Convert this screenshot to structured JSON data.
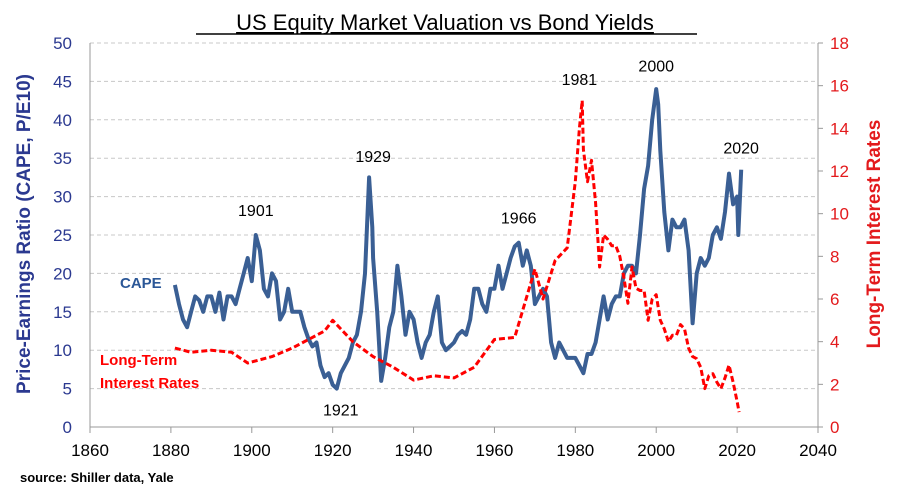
{
  "chart_data": {
    "type": "line",
    "title": "US Equity Market Valuation vs Bond Yields",
    "source": "source: Shiller data, Yale",
    "xlim": [
      1860,
      2040
    ],
    "xticks": [
      1860,
      1880,
      1900,
      1920,
      1940,
      1960,
      1980,
      2000,
      2020,
      2040
    ],
    "y_left": {
      "label": "Price-Earnings Ratio (CAPE, P/E10)",
      "lim": [
        0,
        50
      ],
      "ticks": [
        0,
        5,
        10,
        15,
        20,
        25,
        30,
        35,
        40,
        45,
        50
      ],
      "color": "#2b3990"
    },
    "y_right": {
      "label": "Long-Term Interest Rates",
      "lim": [
        0,
        18
      ],
      "ticks": [
        0,
        2,
        4,
        6,
        8,
        10,
        12,
        14,
        16,
        18
      ],
      "color": "#e31a1c"
    },
    "grid": "horizontal dashed",
    "series": [
      {
        "name": "CAPE",
        "axis": "left",
        "color": "#3a5f94",
        "style": "solid",
        "x": [
          1881,
          1882,
          1883,
          1884,
          1885,
          1886,
          1887,
          1888,
          1889,
          1890,
          1891,
          1892,
          1893,
          1894,
          1895,
          1896,
          1897,
          1898,
          1899,
          1900,
          1901,
          1902,
          1903,
          1904,
          1905,
          1906,
          1907,
          1908,
          1909,
          1910,
          1911,
          1912,
          1913,
          1914,
          1915,
          1916,
          1917,
          1918,
          1919,
          1920,
          1921,
          1922,
          1923,
          1924,
          1925,
          1926,
          1927,
          1928,
          1929,
          1929.8,
          1930,
          1931,
          1932,
          1933,
          1934,
          1935,
          1936,
          1937,
          1938,
          1939,
          1940,
          1941,
          1942,
          1943,
          1944,
          1945,
          1946,
          1947,
          1948,
          1949,
          1950,
          1951,
          1952,
          1953,
          1954,
          1955,
          1956,
          1957,
          1958,
          1959,
          1960,
          1961,
          1962,
          1963,
          1964,
          1965,
          1966,
          1967,
          1968,
          1969,
          1970,
          1971,
          1972,
          1973,
          1974,
          1975,
          1976,
          1977,
          1978,
          1979,
          1980,
          1981,
          1982,
          1983,
          1984,
          1985,
          1986,
          1987,
          1988,
          1989,
          1990,
          1991,
          1992,
          1993,
          1994,
          1995,
          1996,
          1997,
          1998,
          1999,
          2000,
          2000.5,
          2001,
          2002,
          2003,
          2004,
          2005,
          2006,
          2007,
          2008,
          2009,
          2010,
          2011,
          2012,
          2013,
          2014,
          2015,
          2016,
          2017,
          2018,
          2019,
          2020,
          2020.3,
          2021
        ],
        "y": [
          18.5,
          16,
          14,
          13,
          15,
          17,
          16.5,
          15,
          17,
          17,
          15,
          17.5,
          14,
          17,
          17,
          16,
          18,
          20,
          22,
          19,
          25,
          23,
          18,
          17,
          20,
          19,
          14,
          15,
          18,
          15,
          15,
          15,
          13,
          11.5,
          10.5,
          11,
          8,
          6.5,
          7,
          5.5,
          5,
          7,
          8,
          9,
          11,
          12,
          15,
          20,
          32.5,
          26,
          22,
          15,
          6,
          9,
          13,
          15,
          21,
          17,
          12,
          15,
          14,
          11,
          9,
          11,
          12,
          15,
          17,
          11,
          10,
          10.5,
          11,
          12,
          12.5,
          12,
          14,
          18,
          18,
          16,
          15,
          18,
          18,
          21,
          18,
          20,
          22,
          23.5,
          24,
          21,
          23,
          21,
          16,
          17,
          18,
          17,
          11,
          9,
          11,
          10,
          9,
          9,
          9,
          8,
          7,
          9.5,
          9.5,
          11,
          14,
          17,
          14,
          16,
          17,
          17,
          20,
          21,
          21,
          20,
          25,
          31,
          34,
          40,
          44,
          42,
          36,
          28,
          23,
          27,
          26,
          26,
          27,
          23,
          13.5,
          20,
          22,
          21,
          22,
          25,
          26,
          24.5,
          28,
          33,
          29,
          30,
          25,
          33.5
        ]
      },
      {
        "name": "Long-Term Interest Rates",
        "axis": "right",
        "color": "#ff0000",
        "style": "dashed",
        "x": [
          1881,
          1885,
          1890,
          1895,
          1899,
          1905,
          1910,
          1915,
          1918,
          1920,
          1921,
          1925,
          1930,
          1935,
          1940,
          1945,
          1950,
          1955,
          1960,
          1965,
          1970,
          1972,
          1975,
          1978,
          1980,
          1981,
          1981.7,
          1982,
          1983,
          1984,
          1985,
          1986,
          1987,
          1988,
          1989,
          1990,
          1991,
          1992,
          1993,
          1994,
          1995,
          1996,
          1997,
          1998,
          1999,
          2000,
          2001,
          2002,
          2003,
          2004,
          2005,
          2006,
          2007,
          2008,
          2009,
          2010,
          2011,
          2012,
          2013,
          2014,
          2015,
          2016,
          2017,
          2018,
          2019,
          2020,
          2020.5
        ],
        "y": [
          3.7,
          3.5,
          3.6,
          3.5,
          3.0,
          3.3,
          3.7,
          4.2,
          4.5,
          5.0,
          4.8,
          4.0,
          3.3,
          2.8,
          2.2,
          2.4,
          2.3,
          2.8,
          4.1,
          4.2,
          7.4,
          6.0,
          7.8,
          8.4,
          11.5,
          14,
          15.3,
          13,
          11.5,
          12.5,
          10.5,
          7.5,
          9,
          8.8,
          8.5,
          8.5,
          8,
          7,
          5.8,
          7.5,
          6.5,
          6.4,
          6.4,
          5,
          6,
          6.2,
          5,
          4.6,
          4,
          4.3,
          4.3,
          4.8,
          4.6,
          3.7,
          3.3,
          3.2,
          2.8,
          1.8,
          2.4,
          2.5,
          2.1,
          1.8,
          2.3,
          2.9,
          2.1,
          1.2,
          0.7
        ]
      }
    ],
    "annotations": [
      {
        "text": "1901",
        "x": 1901,
        "y": 27.5
      },
      {
        "text": "1929",
        "x": 1930,
        "y": 34.5
      },
      {
        "text": "1921",
        "x": 1922,
        "y": 1.5
      },
      {
        "text": "1966",
        "x": 1966,
        "y": 26.5
      },
      {
        "text": "1981",
        "x": 1981,
        "y": 44.5
      },
      {
        "text": "2000",
        "x": 2000,
        "y": 46.3
      },
      {
        "text": "2020",
        "x": 2021,
        "y": 35.6
      }
    ],
    "series_labels": [
      {
        "text": "CAPE",
        "color": "#2b5797"
      },
      {
        "text": "Long-Term",
        "color": "#ff0000"
      },
      {
        "text": "Interest Rates",
        "color": "#ff0000"
      }
    ]
  }
}
